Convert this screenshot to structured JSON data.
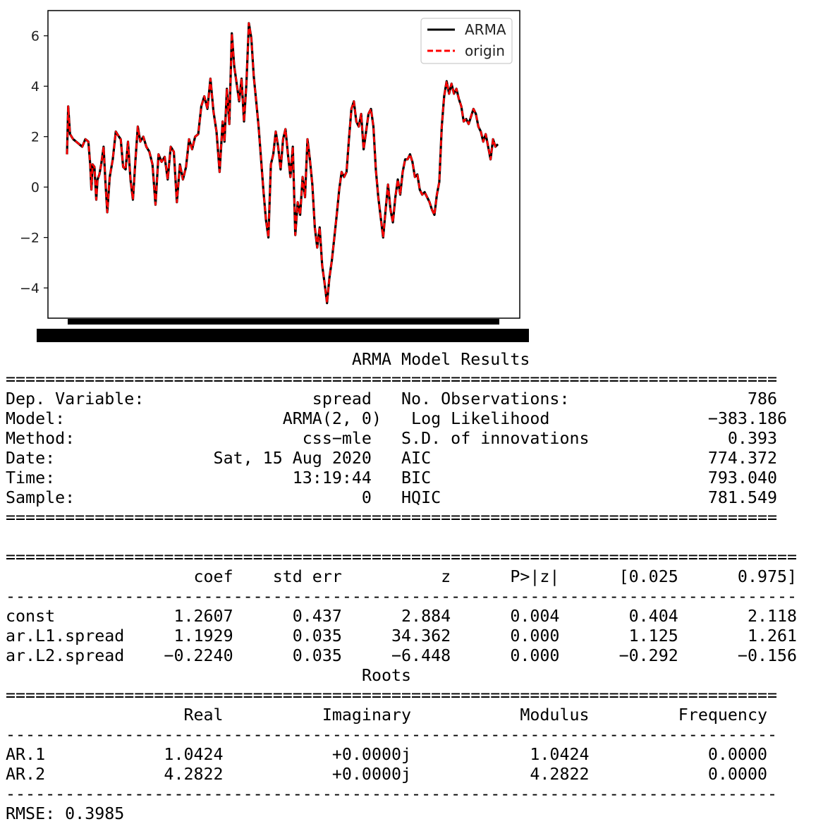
{
  "chart_data": {
    "type": "line",
    "title": "",
    "xlabel": "",
    "ylabel": "",
    "xlim": [
      0,
      786
    ],
    "ylim": [
      -5.2,
      7.0
    ],
    "yticks": [
      -4,
      -2,
      0,
      2,
      4,
      6
    ],
    "ytick_labels": [
      "−4",
      "−2",
      "0",
      "2",
      "4",
      "6"
    ],
    "grid": false,
    "legend_position": "top-right",
    "x_tick_labels_overlapping": true,
    "series": [
      {
        "name": "ARMA",
        "color": "#000000",
        "style": "solid"
      },
      {
        "name": "origin",
        "color": "#ff0000",
        "style": "dashed"
      }
    ],
    "points": [
      [
        0,
        1.3
      ],
      [
        2,
        3.2
      ],
      [
        5,
        2.1
      ],
      [
        10,
        1.9
      ],
      [
        15,
        1.8
      ],
      [
        20,
        1.7
      ],
      [
        25,
        1.6
      ],
      [
        30,
        1.9
      ],
      [
        35,
        1.8
      ],
      [
        38,
        0.9
      ],
      [
        40,
        -0.1
      ],
      [
        42,
        0.9
      ],
      [
        45,
        0.8
      ],
      [
        48,
        -0.5
      ],
      [
        50,
        0.3
      ],
      [
        53,
        0.5
      ],
      [
        56,
        0.9
      ],
      [
        60,
        1.6
      ],
      [
        63,
        0.2
      ],
      [
        66,
        -1.0
      ],
      [
        70,
        0.4
      ],
      [
        75,
        1.1
      ],
      [
        80,
        2.2
      ],
      [
        85,
        2.0
      ],
      [
        88,
        1.9
      ],
      [
        92,
        0.8
      ],
      [
        96,
        0.7
      ],
      [
        100,
        1.8
      ],
      [
        104,
        0.3
      ],
      [
        108,
        -0.5
      ],
      [
        112,
        1.0
      ],
      [
        116,
        2.4
      ],
      [
        120,
        1.8
      ],
      [
        125,
        2.0
      ],
      [
        130,
        1.6
      ],
      [
        135,
        1.4
      ],
      [
        140,
        0.9
      ],
      [
        145,
        -0.7
      ],
      [
        150,
        1.3
      ],
      [
        155,
        1.0
      ],
      [
        160,
        1.2
      ],
      [
        165,
        0.3
      ],
      [
        170,
        1.6
      ],
      [
        175,
        1.4
      ],
      [
        180,
        -0.6
      ],
      [
        185,
        0.9
      ],
      [
        190,
        0.3
      ],
      [
        195,
        0.8
      ],
      [
        200,
        1.9
      ],
      [
        205,
        1.5
      ],
      [
        210,
        2.0
      ],
      [
        215,
        2.1
      ],
      [
        220,
        3.2
      ],
      [
        225,
        3.6
      ],
      [
        230,
        3.1
      ],
      [
        235,
        4.3
      ],
      [
        240,
        3.0
      ],
      [
        245,
        2.2
      ],
      [
        250,
        0.6
      ],
      [
        255,
        2.6
      ],
      [
        258,
        1.8
      ],
      [
        262,
        3.9
      ],
      [
        266,
        2.5
      ],
      [
        270,
        6.1
      ],
      [
        274,
        4.8
      ],
      [
        278,
        4.1
      ],
      [
        282,
        3.4
      ],
      [
        286,
        4.3
      ],
      [
        290,
        2.6
      ],
      [
        294,
        4.1
      ],
      [
        298,
        6.5
      ],
      [
        302,
        5.9
      ],
      [
        306,
        4.4
      ],
      [
        310,
        3.4
      ],
      [
        314,
        2.4
      ],
      [
        318,
        1.1
      ],
      [
        322,
        -0.2
      ],
      [
        326,
        -1.3
      ],
      [
        330,
        -2.0
      ],
      [
        334,
        0.9
      ],
      [
        338,
        1.3
      ],
      [
        342,
        2.2
      ],
      [
        346,
        1.6
      ],
      [
        350,
        0.7
      ],
      [
        354,
        1.9
      ],
      [
        358,
        2.3
      ],
      [
        362,
        1.3
      ],
      [
        366,
        0.4
      ],
      [
        370,
        1.6
      ],
      [
        374,
        -1.9
      ],
      [
        378,
        -0.6
      ],
      [
        382,
        -1.1
      ],
      [
        386,
        0.4
      ],
      [
        390,
        -0.4
      ],
      [
        394,
        1.9
      ],
      [
        398,
        1.1
      ],
      [
        402,
        0.1
      ],
      [
        406,
        -1.6
      ],
      [
        410,
        -2.4
      ],
      [
        414,
        -1.6
      ],
      [
        418,
        -3.1
      ],
      [
        422,
        -3.8
      ],
      [
        426,
        -4.6
      ],
      [
        430,
        -3.6
      ],
      [
        434,
        -2.9
      ],
      [
        438,
        -2.0
      ],
      [
        442,
        -1.1
      ],
      [
        446,
        -0.1
      ],
      [
        450,
        0.6
      ],
      [
        454,
        0.4
      ],
      [
        458,
        0.6
      ],
      [
        462,
        1.9
      ],
      [
        466,
        3.1
      ],
      [
        470,
        3.4
      ],
      [
        474,
        2.6
      ],
      [
        478,
        2.4
      ],
      [
        482,
        2.9
      ],
      [
        486,
        1.5
      ],
      [
        490,
        2.2
      ],
      [
        494,
        2.9
      ],
      [
        498,
        3.1
      ],
      [
        502,
        2.4
      ],
      [
        506,
        0.7
      ],
      [
        510,
        -0.4
      ],
      [
        514,
        -1.2
      ],
      [
        518,
        -2.0
      ],
      [
        522,
        -0.9
      ],
      [
        526,
        0.1
      ],
      [
        530,
        -0.9
      ],
      [
        534,
        -1.4
      ],
      [
        538,
        -0.4
      ],
      [
        542,
        0.3
      ],
      [
        546,
        -0.3
      ],
      [
        550,
        0.6
      ],
      [
        554,
        1.1
      ],
      [
        558,
        1.1
      ],
      [
        562,
        1.3
      ],
      [
        566,
        1.0
      ],
      [
        570,
        0.4
      ],
      [
        574,
        0.5
      ],
      [
        578,
        -0.1
      ],
      [
        582,
        -0.3
      ],
      [
        586,
        -0.2
      ],
      [
        590,
        -0.4
      ],
      [
        594,
        -0.6
      ],
      [
        598,
        -0.9
      ],
      [
        602,
        -1.1
      ],
      [
        606,
        -0.3
      ],
      [
        610,
        0.2
      ],
      [
        614,
        2.4
      ],
      [
        618,
        3.6
      ],
      [
        622,
        4.2
      ],
      [
        626,
        3.7
      ],
      [
        630,
        4.1
      ],
      [
        634,
        3.7
      ],
      [
        638,
        3.9
      ],
      [
        642,
        3.5
      ],
      [
        646,
        3.2
      ],
      [
        650,
        2.6
      ],
      [
        654,
        2.7
      ],
      [
        658,
        2.5
      ],
      [
        662,
        2.8
      ],
      [
        666,
        3.1
      ],
      [
        670,
        2.9
      ],
      [
        674,
        2.4
      ],
      [
        678,
        2.2
      ],
      [
        682,
        1.8
      ],
      [
        686,
        2.1
      ],
      [
        690,
        1.6
      ],
      [
        694,
        1.1
      ],
      [
        698,
        1.9
      ],
      [
        702,
        1.6
      ],
      [
        706,
        1.7
      ]
    ]
  },
  "results": {
    "title": "ARMA Model Results",
    "double_rule": "==============================================================================",
    "double_rule_wide": "================================================================================",
    "single_rule": "------------------------------------------------------------------------------",
    "single_rule_wide": "--------------------------------------------------------------------------------",
    "summary_rows": [
      "Dep. Variable:                 spread   No. Observations:                  786",
      "Model:                      ARMA(2, 0)   Log Likelihood                −383.186",
      "Method:                       css−mle   S.D. of innovations              0.393",
      "Date:                Sat, 15 Aug 2020   AIC                            774.372",
      "Time:                        13:19:44   BIC                            793.040",
      "Sample:                             0   HQIC                           781.549"
    ],
    "coef_header": "                   coef    std err          z      P>|z|      [0.025      0.975]",
    "coef_rows": [
      "const            1.2607      0.437      2.884      0.004       0.404       2.118",
      "ar.L1.spread     1.1929      0.035     34.362      0.000       1.125       1.261",
      "ar.L2.spread    −0.2240      0.035     −6.448      0.000      −0.292      −0.156"
    ],
    "roots_title": "Roots",
    "roots_header": "                  Real          Imaginary           Modulus         Frequency",
    "roots_rows": [
      "AR.1            1.0424           +0.0000j            1.0424            0.0000",
      "AR.2            4.2822           +0.0000j            4.2822            0.0000"
    ],
    "rmse": "RMSE: 0.3985"
  }
}
